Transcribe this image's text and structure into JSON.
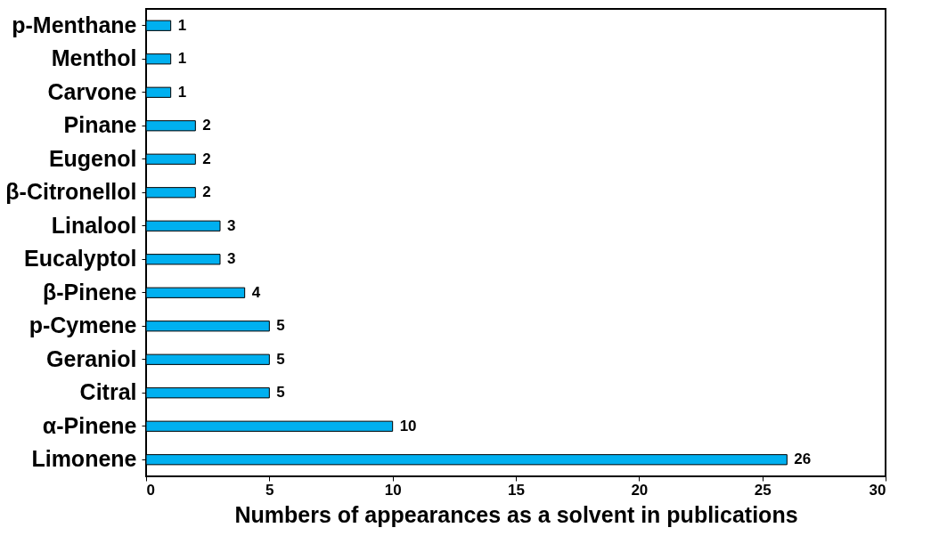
{
  "chart_data": {
    "type": "bar",
    "orientation": "horizontal",
    "xlabel": "Numbers of appearances as a solvent in publications",
    "categories": [
      "p-Menthane",
      "Menthol",
      "Carvone",
      "Pinane",
      "Eugenol",
      "β-Citronellol",
      "Linalool",
      "Eucalyptol",
      "β-Pinene",
      "p-Cymene",
      "Geraniol",
      "Citral",
      "α-Pinene",
      "Limonene"
    ],
    "values": [
      1,
      1,
      1,
      2,
      2,
      2,
      3,
      3,
      4,
      5,
      5,
      5,
      10,
      26
    ],
    "color": "#00b0f0",
    "xlim": [
      0,
      30
    ],
    "xticks": [
      0,
      5,
      10,
      15,
      20,
      25,
      30
    ],
    "grid": false,
    "data_labels": true
  }
}
